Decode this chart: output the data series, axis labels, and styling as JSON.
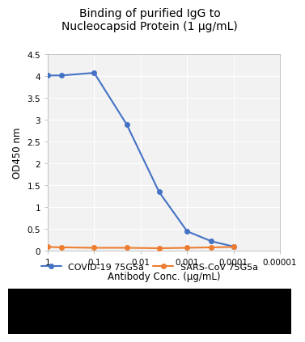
{
  "title": "Binding of purified IgG to\nNucleocapsid Protein (1 μg/mL)",
  "xlabel": "Antibody Conc. (μg/mL)",
  "ylabel": "OD450 nm",
  "ylim": [
    0,
    4.5
  ],
  "yticks": [
    0,
    0.5,
    1,
    1.5,
    2,
    2.5,
    3,
    3.5,
    4,
    4.5
  ],
  "covid_x": [
    1,
    0.5,
    0.1,
    0.02,
    0.004,
    0.001,
    0.0003,
    0.0001
  ],
  "covid_y": [
    4.02,
    4.02,
    4.08,
    2.9,
    1.35,
    0.45,
    0.22,
    0.1
  ],
  "sars_x": [
    1,
    0.5,
    0.1,
    0.02,
    0.004,
    0.001,
    0.0003,
    0.0001
  ],
  "sars_y": [
    0.09,
    0.08,
    0.07,
    0.07,
    0.06,
    0.07,
    0.08,
    0.09
  ],
  "covid_color": "#4472c4",
  "sars_color": "#ed7d31",
  "covid_label": "COVID-19 75G5a",
  "sars_label": "SARS-CoV 75G5a",
  "marker": "o",
  "markersize": 4,
  "linewidth": 1.5,
  "title_fontsize": 10,
  "axis_label_fontsize": 8.5,
  "tick_fontsize": 7.5,
  "legend_fontsize": 8,
  "plot_bg_color": "#f2f2f2",
  "fig_bg_color": "#ffffff",
  "outer_bg_color": "#000000",
  "grid_color": "#ffffff",
  "xtick_labels": [
    "1",
    "0.1",
    "0.01",
    "0.001",
    "0.0001",
    "0.00001"
  ],
  "xtick_vals": [
    1,
    0.1,
    0.01,
    0.001,
    0.0001,
    1e-05
  ]
}
